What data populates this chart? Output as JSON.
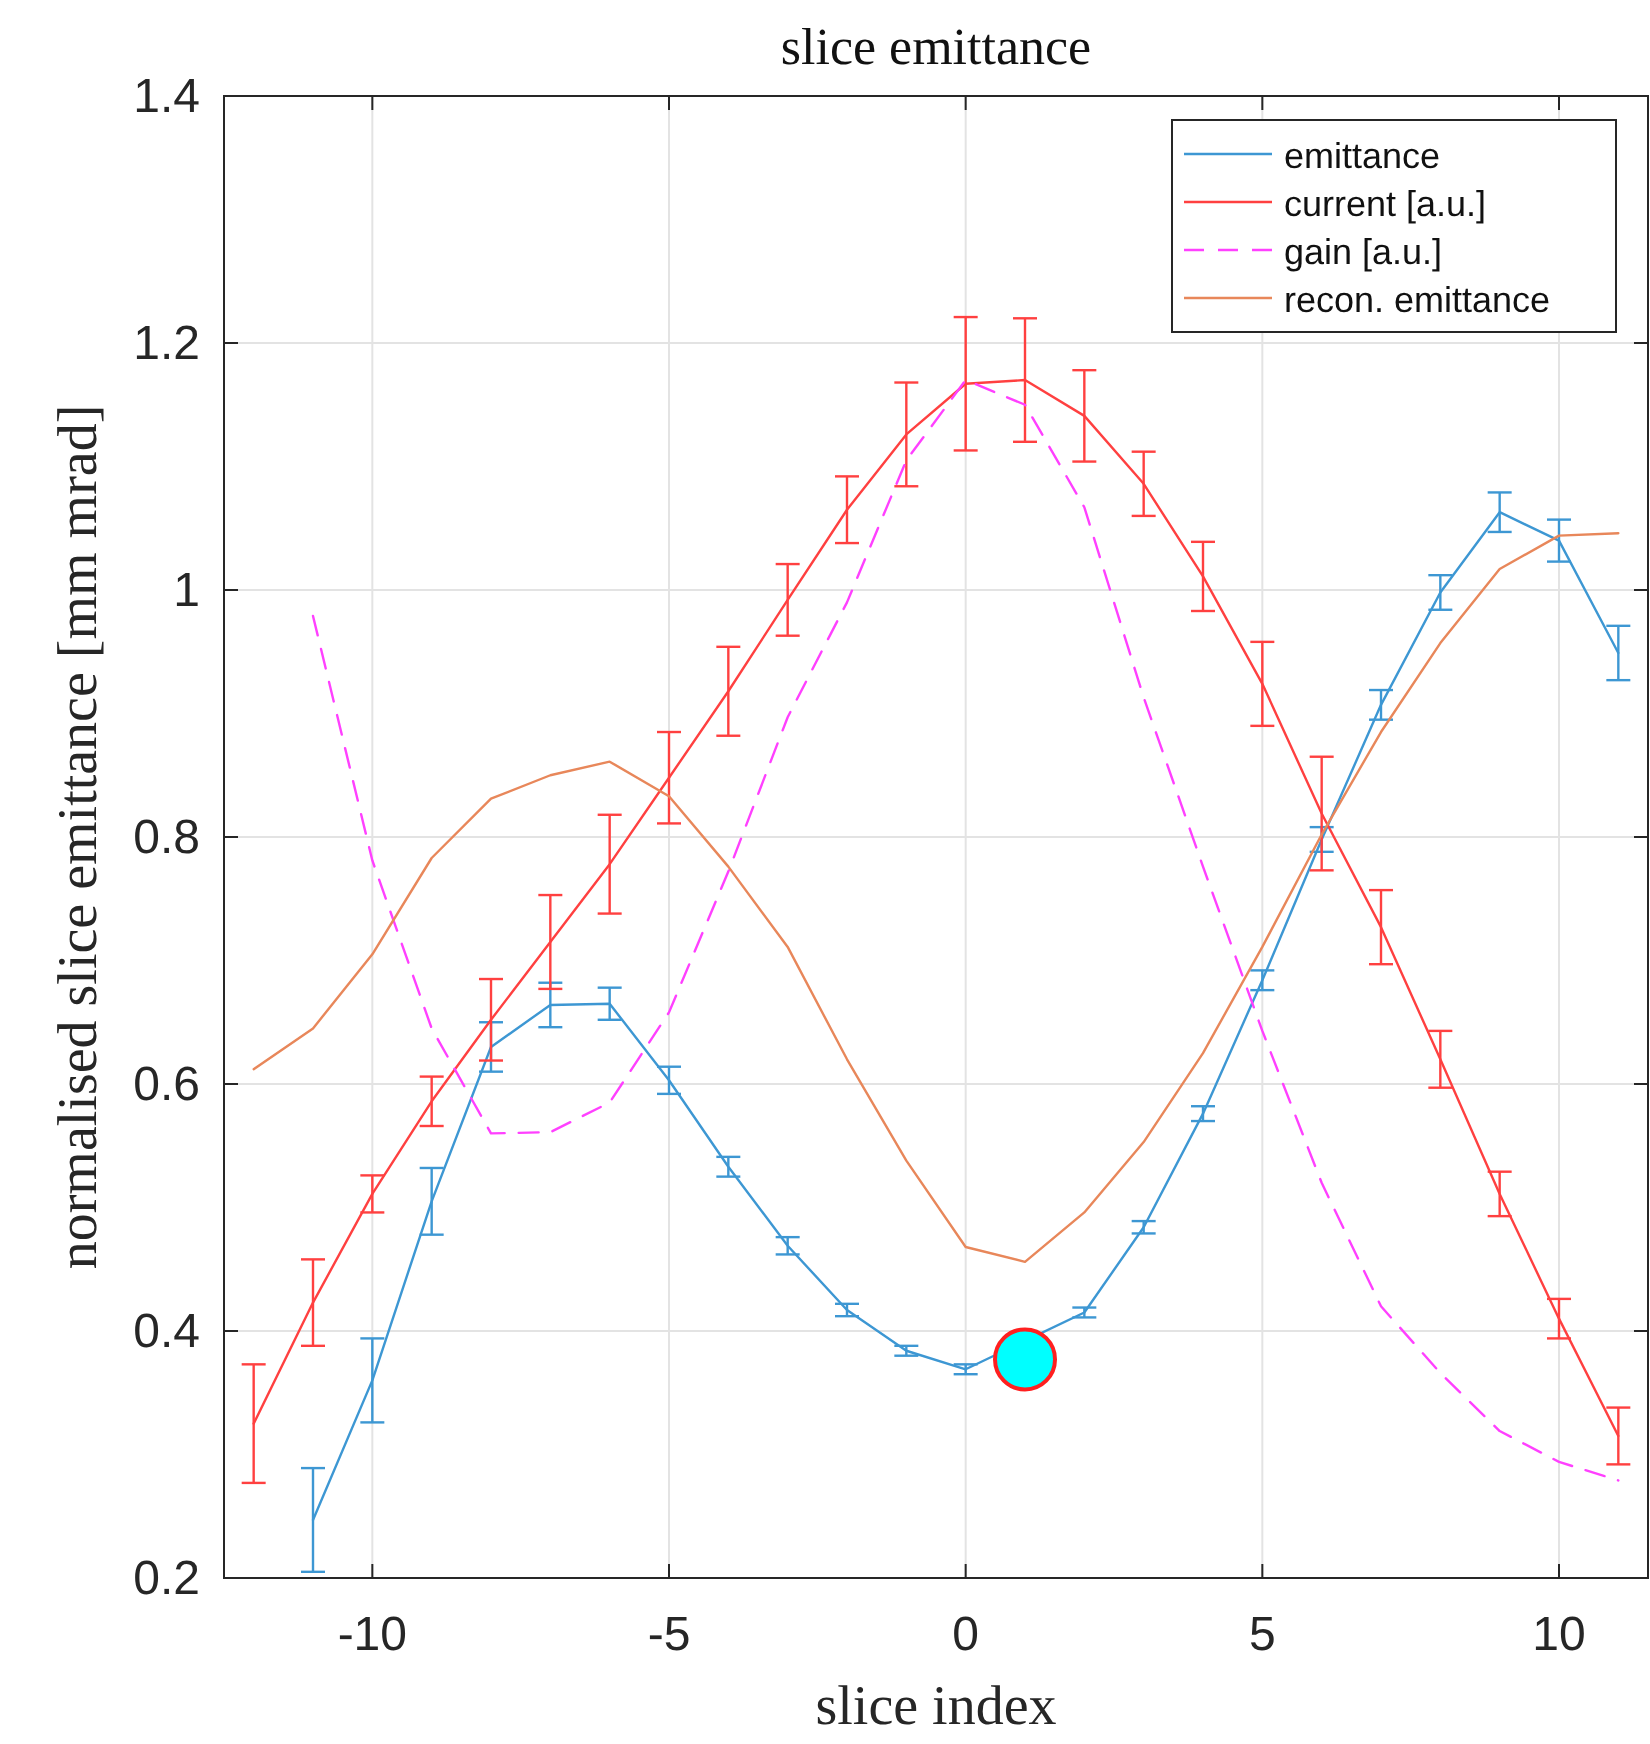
{
  "chart_data": {
    "type": "line",
    "title": "slice emittance",
    "xlabel": "slice index",
    "ylabel": "normalised slice emittance [mm mrad]",
    "xlim": [
      -12.5,
      11.5
    ],
    "xticks": [
      -10,
      -5,
      0,
      5,
      10
    ],
    "ylim": [
      0.2,
      1.4
    ],
    "yticks": [
      0.2,
      0.4,
      0.6,
      0.8,
      1,
      1.2,
      1.4
    ],
    "grid": true,
    "legend": "top right",
    "series": [
      {
        "name": "emittance",
        "color": "#3d97d3",
        "line_style": "solid",
        "x": [
          -11,
          -10,
          -9,
          -8,
          -7,
          -6,
          -5,
          -4,
          -3,
          -2,
          -1,
          0,
          1,
          2,
          3,
          4,
          5,
          6,
          7,
          8,
          9,
          10,
          11
        ],
        "values": [
          0.247,
          0.36,
          0.505,
          0.63,
          0.664,
          0.665,
          0.603,
          0.533,
          0.469,
          0.417,
          0.384,
          0.369,
          null,
          0.415,
          0.484,
          0.576,
          0.684,
          0.798,
          0.907,
          0.998,
          1.063,
          1.04,
          0.949
        ],
        "errors": [
          0.042,
          0.034,
          0.027,
          0.02,
          0.018,
          0.013,
          0.011,
          0.008,
          0.007,
          0.005,
          0.004,
          0.004,
          null,
          0.004,
          0.005,
          0.006,
          0.008,
          0.01,
          0.012,
          0.014,
          0.016,
          0.017,
          0.022
        ]
      },
      {
        "name": "current [a.u.]",
        "color": "#ff4040",
        "line_style": "solid",
        "x": [
          -12,
          -11,
          -10,
          -9,
          -8,
          -7,
          -6,
          -5,
          -4,
          -3,
          -2,
          -1,
          0,
          1,
          2,
          3,
          4,
          5,
          6,
          7,
          8,
          9,
          10,
          11
        ],
        "values": [
          0.325,
          0.423,
          0.511,
          0.586,
          0.652,
          0.715,
          0.778,
          0.848,
          0.918,
          0.992,
          1.065,
          1.126,
          1.167,
          1.17,
          1.141,
          1.086,
          1.011,
          0.924,
          0.819,
          0.727,
          0.62,
          0.511,
          0.41,
          0.315
        ],
        "errors": [
          0.048,
          0.035,
          0.015,
          0.02,
          0.033,
          0.038,
          0.04,
          0.037,
          0.036,
          0.029,
          0.027,
          0.042,
          0.054,
          0.05,
          0.037,
          0.026,
          0.028,
          0.034,
          0.046,
          0.03,
          0.023,
          0.018,
          0.016,
          0.023
        ]
      },
      {
        "name": "gain [a.u.]",
        "color": "#ff40ff",
        "line_style": "dashed",
        "x": [
          -11,
          -10,
          -9,
          -8,
          -7,
          -6,
          -5,
          -4,
          -3,
          -2,
          -1,
          0,
          1,
          2,
          3,
          4,
          5,
          6,
          7,
          8,
          9,
          10,
          11
        ],
        "values": [
          0.979,
          0.781,
          0.645,
          0.56,
          0.561,
          0.585,
          0.658,
          0.772,
          0.897,
          0.99,
          1.105,
          1.17,
          1.15,
          1.067,
          0.913,
          0.776,
          0.643,
          0.52,
          0.42,
          0.366,
          0.319,
          0.294,
          0.279
        ]
      },
      {
        "name": "recon. emittance",
        "color": "#e8875a",
        "line_style": "solid",
        "x": [
          -12,
          -11,
          -10,
          -9,
          -8,
          -7,
          -6,
          -5,
          -4,
          -3,
          -2,
          -1,
          0,
          1,
          2,
          3,
          4,
          5,
          6,
          7,
          8,
          9,
          10,
          11
        ],
        "values": [
          0.612,
          0.645,
          0.705,
          0.783,
          0.831,
          0.85,
          0.861,
          0.833,
          0.776,
          0.711,
          0.62,
          0.538,
          0.468,
          0.456,
          0.496,
          0.553,
          0.625,
          0.711,
          0.802,
          0.885,
          0.957,
          1.017,
          1.044,
          1.046
        ]
      },
      {
        "type": "scatter",
        "color": "#00ffff",
        "marker": "circle",
        "x": [
          1
        ],
        "values": [
          0.377
        ]
      }
    ]
  }
}
